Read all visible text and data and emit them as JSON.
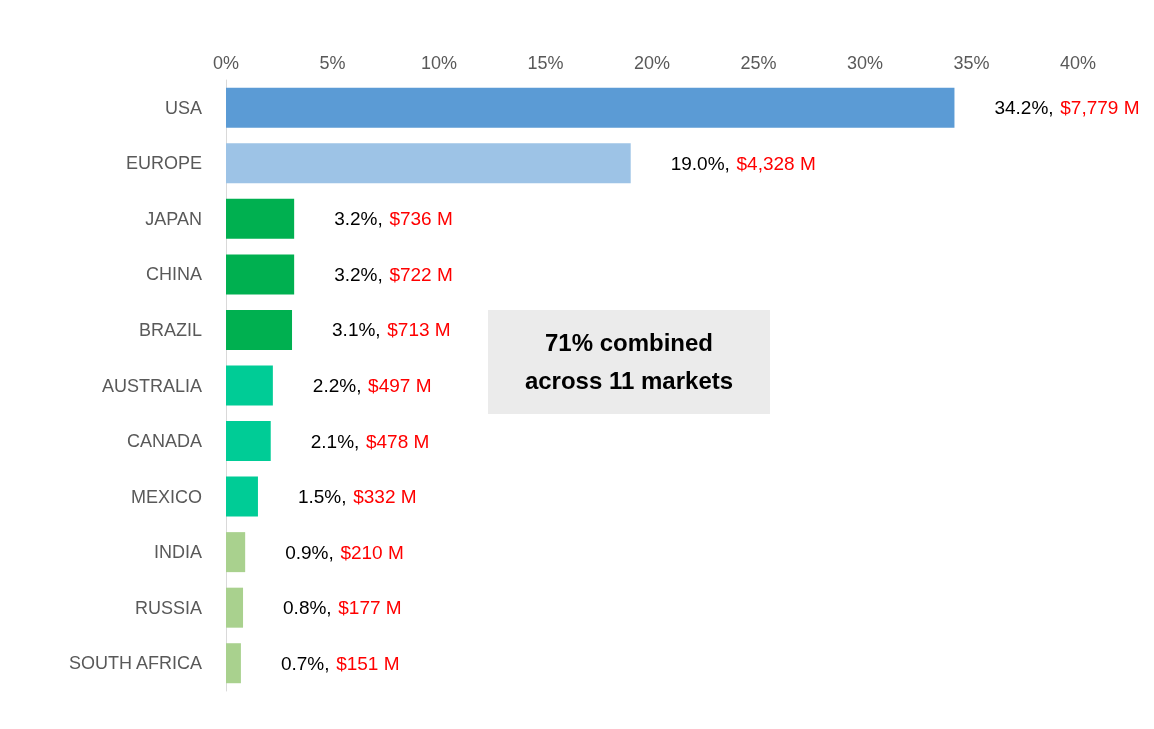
{
  "chart_data": {
    "type": "bar",
    "orientation": "horizontal",
    "categories": [
      "USA",
      "EUROPE",
      "JAPAN",
      "CHINA",
      "BRAZIL",
      "AUSTRALIA",
      "CANADA",
      "MEXICO",
      "INDIA",
      "RUSSIA",
      "SOUTH AFRICA"
    ],
    "values": [
      34.2,
      19.0,
      3.2,
      3.2,
      3.1,
      2.2,
      2.1,
      1.5,
      0.9,
      0.8,
      0.7
    ],
    "colors": [
      "#5b9bd5",
      "#9dc3e6",
      "#00b050",
      "#00b050",
      "#00b050",
      "#00cc96",
      "#00cc96",
      "#00cc96",
      "#a9d18e",
      "#a9d18e",
      "#a9d18e"
    ],
    "value_labels": [
      "34.2%, $7,779 M",
      "19.0%, $4,328 M",
      "3.2%, $736 M",
      "3.2%, $722 M",
      "3.1%, $713 M",
      "2.2%, $497 M",
      "2.1%, $478 M",
      "1.5%, $332 M",
      "0.9%, $210 M",
      "0.8%, $177 M",
      "0.7%, $151 M"
    ],
    "xlim": [
      0,
      40
    ],
    "xticks": [
      {
        "value": 0,
        "label": "0%"
      },
      {
        "value": 5,
        "label": "5%"
      },
      {
        "value": 10,
        "label": "10%"
      },
      {
        "value": 15,
        "label": "15%"
      },
      {
        "value": 20,
        "label": "20%"
      },
      {
        "value": 25,
        "label": "25%"
      },
      {
        "value": 30,
        "label": "30%"
      },
      {
        "value": 35,
        "label": "35%"
      },
      {
        "value": 40,
        "label": "40%"
      }
    ],
    "annotations": [
      "71% combined across 11 markets"
    ],
    "grid": false
  }
}
